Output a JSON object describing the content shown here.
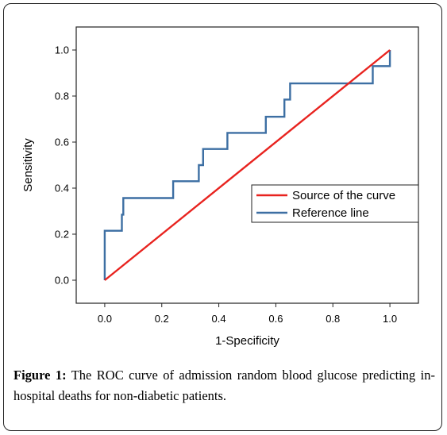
{
  "chart_data": {
    "type": "line",
    "xlabel": "1-Specificity",
    "ylabel": "Sensitivity",
    "xlim": [
      -0.1,
      1.1
    ],
    "ylim": [
      -0.1,
      1.1
    ],
    "x_ticks": [
      "0.0",
      "0.2",
      "0.4",
      "0.6",
      "0.8",
      "1.0"
    ],
    "y_ticks": [
      "0.0",
      "0.2",
      "0.4",
      "0.6",
      "0.8",
      "1.0"
    ],
    "legend_position": "middle-right",
    "series": [
      {
        "name": "Source of the curve",
        "color": "#e8231f",
        "x": [
          0.0,
          1.0
        ],
        "y": [
          0.0,
          1.0
        ]
      },
      {
        "name": "Reference line",
        "color": "#3d6fa3",
        "x": [
          0.0,
          0.0,
          0.0,
          0.0,
          0.06,
          0.06,
          0.065,
          0.065,
          0.24,
          0.24,
          0.33,
          0.33,
          0.345,
          0.345,
          0.43,
          0.43,
          0.565,
          0.565,
          0.63,
          0.63,
          0.65,
          0.65,
          0.94,
          0.94,
          1.0,
          1.0
        ],
        "y": [
          0.0,
          0.14,
          0.14,
          0.215,
          0.215,
          0.285,
          0.285,
          0.357,
          0.357,
          0.43,
          0.43,
          0.5,
          0.5,
          0.57,
          0.57,
          0.64,
          0.64,
          0.71,
          0.71,
          0.785,
          0.785,
          0.855,
          0.855,
          0.93,
          0.93,
          1.0
        ]
      }
    ]
  },
  "caption": {
    "label": "Figure 1:",
    "text": " The ROC curve of admission random blood glucose predicting in-hospital deaths for non-diabetic patients."
  }
}
